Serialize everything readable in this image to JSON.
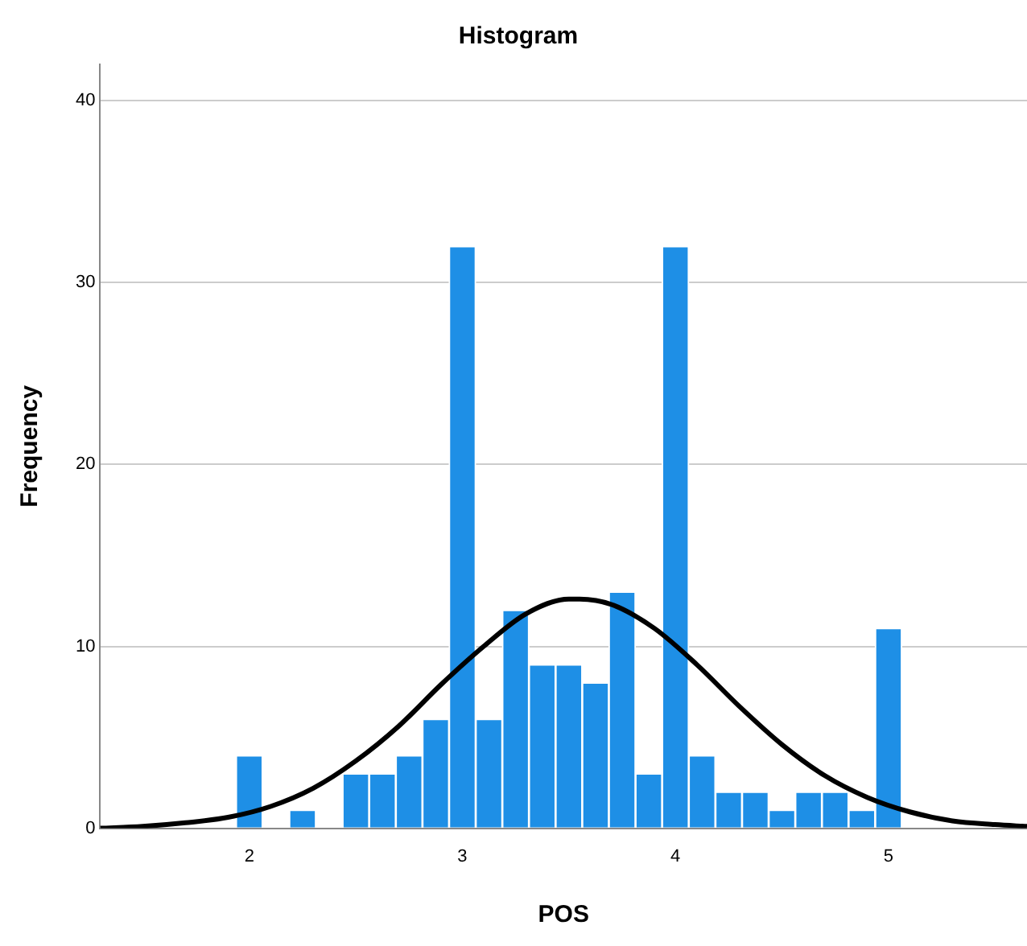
{
  "chart_data": {
    "type": "histogram",
    "title": "Histogram",
    "xlabel": "POS",
    "ylabel": "Frequency",
    "bins": [
      1.9375,
      2.0625,
      2.1875,
      2.3125,
      2.4375,
      2.5625,
      2.6875,
      2.8125,
      2.9375,
      3.0625,
      3.1875,
      3.3125,
      3.4375,
      3.5625,
      3.6875,
      3.8125,
      3.9375,
      4.0625,
      4.1875,
      4.3125,
      4.4375,
      4.5625,
      4.6875,
      4.8125,
      4.9375,
      5.0625
    ],
    "values": [
      4,
      0,
      1,
      0,
      3,
      3,
      4,
      6,
      32,
      6,
      12,
      9,
      9,
      8,
      13,
      3,
      32,
      4,
      2,
      2,
      1,
      2,
      2,
      1,
      11
    ],
    "color": "#1e8fe6",
    "series": [
      {
        "type": "line",
        "color": "#000000",
        "marker": "none",
        "x": [
          1.3,
          1.5,
          1.7,
          1.9,
          2.1,
          2.3,
          2.5,
          2.7,
          2.9,
          3.1,
          3.3,
          3.5,
          3.55,
          3.7,
          3.9,
          4.1,
          4.3,
          4.5,
          4.7,
          4.9,
          5.1,
          5.3,
          5.5,
          5.65
        ],
        "values": [
          0,
          0.1,
          0.3,
          0.6,
          1.2,
          2.2,
          3.7,
          5.6,
          7.9,
          10,
          11.8,
          12.6,
          12.6,
          12.3,
          11,
          9,
          6.7,
          4.6,
          2.9,
          1.7,
          0.9,
          0.4,
          0.2,
          0.1
        ]
      }
    ],
    "xlim": [
      1.3,
      5.65
    ],
    "xticks": [
      2,
      3,
      4,
      5
    ],
    "ylim": [
      0,
      42
    ],
    "yticks": [
      0,
      10,
      20,
      30,
      40
    ],
    "grid": "y",
    "legend": false
  }
}
